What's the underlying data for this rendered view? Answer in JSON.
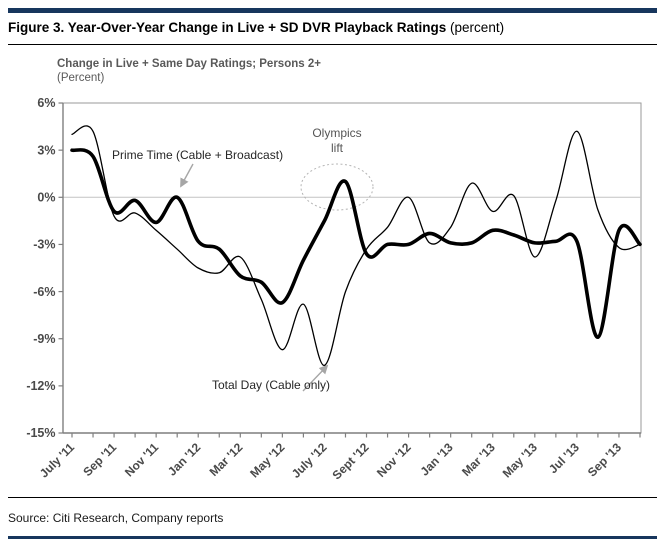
{
  "page": {
    "title_bold": "Figure 3. Year-Over-Year Change in Live + SD DVR Playback Ratings",
    "title_suffix": " (percent)",
    "source": "Source: Citi Research, Company reports"
  },
  "chart": {
    "subtitle_line1": "Change in Live + Same Day Ratings; Persons 2+",
    "subtitle_line2": "(Percent)",
    "annotations": {
      "prime_time": "Prime Time (Cable + Broadcast)",
      "total_day": "Total Day (Cable only)",
      "olympics_line1": "Olympics",
      "olympics_line2": "lift"
    }
  },
  "chart_data": {
    "type": "line",
    "title": "Change in Live + Same Day Ratings; Persons 2+ (Percent)",
    "x": [
      "July '11",
      "Aug '11",
      "Sep '11",
      "Oct '11",
      "Nov '11",
      "Dec '11",
      "Jan '12",
      "Feb '12",
      "Mar '12",
      "Apr '12",
      "May '12",
      "Jun '12",
      "July '12",
      "Aug '12",
      "Sept '12",
      "Oct '12",
      "Nov '12",
      "Dec '12",
      "Jan '13",
      "Feb '13",
      "Mar '13",
      "Apr '13",
      "May '13",
      "Jun '13",
      "Jul '13",
      "Aug '13",
      "Sep '13",
      "Oct '13"
    ],
    "x_tick_labels_visible": [
      "July '11",
      "Sep '11",
      "Nov '11",
      "Jan '12",
      "Mar '12",
      "May '12",
      "July '12",
      "Sept '12",
      "Nov '12",
      "Jan '13",
      "Mar '13",
      "May '13",
      "Jul '13",
      "Sep '13"
    ],
    "series": [
      {
        "name": "Prime Time (Cable + Broadcast)",
        "style": "thick",
        "values": [
          3.0,
          2.6,
          -0.9,
          -0.2,
          -1.6,
          0.0,
          -2.8,
          -3.3,
          -5.0,
          -5.4,
          -6.7,
          -4.0,
          -1.5,
          1.0,
          -3.6,
          -3.0,
          -3.0,
          -2.3,
          -2.9,
          -2.9,
          -2.1,
          -2.4,
          -2.9,
          -2.8,
          -2.8,
          -8.9,
          -2.1,
          -3.0
        ]
      },
      {
        "name": "Total Day (Cable only)",
        "style": "thin",
        "values": [
          4.0,
          4.2,
          -1.2,
          -1.0,
          -2.1,
          -3.3,
          -4.5,
          -4.8,
          -3.8,
          -6.5,
          -9.7,
          -6.8,
          -10.7,
          -6.0,
          -3.3,
          -1.9,
          0.0,
          -2.9,
          -1.9,
          0.9,
          -0.9,
          0.1,
          -3.8,
          -0.2,
          4.2,
          -0.8,
          -3.2,
          -3.0
        ]
      }
    ],
    "ylim": [
      -15,
      6
    ],
    "y_tick_labels": [
      "6%",
      "3%",
      "0%",
      "-3%",
      "-6%",
      "-9%",
      "-12%",
      "-15%"
    ],
    "y_tick_values": [
      6,
      3,
      0,
      -3,
      -6,
      -9,
      -12,
      -15
    ],
    "y_gridlines": [
      0
    ],
    "line_color": "#000000",
    "legend_position": "inline-annotations"
  },
  "colors": {
    "accent_navy": "#17365d",
    "annotation_gray": "#595959",
    "axis_gray": "#8c8c8c",
    "gridline_gray": "#c4c4c4",
    "ellipse_gray": "#b5b5b5"
  }
}
